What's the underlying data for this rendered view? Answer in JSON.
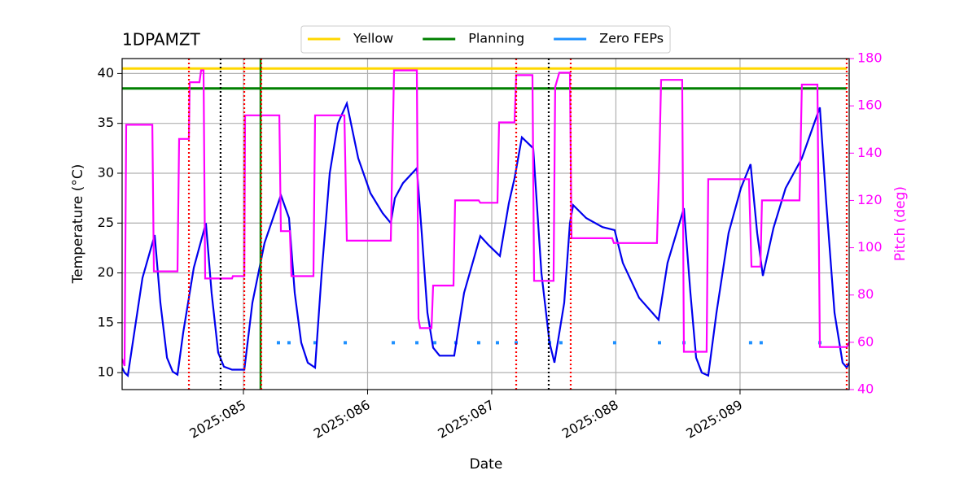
{
  "chart_data": {
    "type": "line",
    "title": "1DPAMZT",
    "xlabel": "Date",
    "ylabel": "Temperature (°C)",
    "y2label": "Pitch (deg)",
    "xlim": [
      84.023,
      89.879
    ],
    "xticks": [
      {
        "value": 85,
        "label": "2025:085"
      },
      {
        "value": 86,
        "label": "2025:086"
      },
      {
        "value": 87,
        "label": "2025:087"
      },
      {
        "value": 88,
        "label": "2025:088"
      },
      {
        "value": 89,
        "label": "2025:089"
      }
    ],
    "ylim": [
      8.3,
      41.5
    ],
    "yticks": [
      10,
      15,
      20,
      25,
      30,
      35,
      40
    ],
    "y2lim": [
      40,
      180
    ],
    "y2ticks": [
      40,
      60,
      80,
      100,
      120,
      140,
      160,
      180
    ],
    "y2color": "#ff00ff",
    "grid": true,
    "legend": "upper center",
    "limits": [
      {
        "name": "Yellow",
        "color": "#ffd700",
        "value": 40.5
      },
      {
        "name": "Planning",
        "color": "#008000",
        "value": 38.5
      }
    ],
    "vlines": [
      {
        "color": "#008000",
        "style": "solid",
        "x": [
          85.138
        ]
      },
      {
        "color": "#ff0000",
        "style": "dotted",
        "x": [
          84.561,
          85.007,
          85.144,
          87.197,
          87.636,
          89.859
        ]
      },
      {
        "color": "#000000",
        "style": "dotted",
        "x": [
          84.816,
          87.459
        ]
      }
    ],
    "series": [
      {
        "color": "#0000ee",
        "style": "line",
        "x": [
          84.023,
          84.043,
          84.069,
          84.121,
          84.187,
          84.285,
          84.331,
          84.384,
          84.43,
          84.469,
          84.515,
          84.6,
          84.698,
          84.744,
          84.797,
          84.843,
          84.908,
          85.007,
          85.072,
          85.17,
          85.302,
          85.367,
          85.413,
          85.466,
          85.518,
          85.577,
          85.63,
          85.695,
          85.761,
          85.833,
          85.925,
          86.023,
          86.121,
          86.187,
          86.22,
          86.285,
          86.397,
          86.436,
          86.482,
          86.528,
          86.58,
          86.698,
          86.777,
          86.908,
          86.974,
          87.066,
          87.138,
          87.184,
          87.243,
          87.334,
          87.4,
          87.466,
          87.505,
          87.551,
          87.584,
          87.63,
          87.656,
          87.761,
          87.892,
          87.99,
          88.056,
          88.187,
          88.344,
          88.416,
          88.548,
          88.6,
          88.646,
          88.692,
          88.744,
          88.81,
          88.908,
          89.007,
          89.085,
          89.138,
          89.184,
          89.269,
          89.367,
          89.498,
          89.597,
          89.643,
          89.695,
          89.761,
          89.826,
          89.859,
          89.879
        ],
        "values": [
          10.5,
          10,
          9.7,
          14,
          19.5,
          23.8,
          17,
          11.5,
          10.1,
          9.8,
          14,
          20.5,
          25,
          18,
          12,
          10.6,
          10.3,
          10.3,
          17,
          23,
          27.8,
          25.5,
          18,
          13,
          11,
          10.5,
          20,
          30,
          35,
          37,
          31.5,
          28,
          26,
          25,
          27.5,
          29,
          30.5,
          24,
          16,
          12.5,
          11.7,
          11.7,
          18,
          23.7,
          22.8,
          21.7,
          27,
          29.5,
          33.6,
          32.5,
          20,
          13,
          11,
          14.5,
          17,
          25,
          26.8,
          25.5,
          24.6,
          24.3,
          21,
          17.5,
          15.3,
          21,
          26.5,
          18,
          11.5,
          10,
          9.7,
          16,
          24,
          28.5,
          30.9,
          24,
          19.7,
          24.5,
          28.5,
          31.5,
          35,
          36.6,
          27,
          16,
          11,
          10.5,
          11
        ]
      },
      {
        "color": "#ff00ff",
        "style": "line",
        "axis": "y2",
        "x": [
          84.023,
          84.043,
          84.056,
          84.266,
          84.279,
          84.469,
          84.482,
          84.561,
          84.567,
          84.646,
          84.659,
          84.679,
          84.692,
          84.908,
          84.915,
          85.007,
          85.013,
          85.289,
          85.302,
          85.374,
          85.387,
          85.564,
          85.577,
          85.813,
          85.833,
          86.187,
          86.2,
          86.213,
          86.397,
          86.41,
          86.423,
          86.515,
          86.528,
          86.692,
          86.705,
          86.895,
          86.908,
          87.046,
          87.059,
          87.184,
          87.197,
          87.328,
          87.341,
          87.498,
          87.511,
          87.544,
          87.63,
          87.643,
          87.97,
          87.984,
          88.331,
          88.351,
          88.364,
          88.534,
          88.548,
          88.731,
          88.744,
          89.072,
          89.092,
          89.164,
          89.177,
          89.479,
          89.498,
          89.623,
          89.643,
          89.859,
          89.879
        ],
        "values": [
          53,
          50,
          152,
          152,
          90,
          90,
          146,
          146,
          170,
          170,
          175,
          175,
          87,
          87,
          88,
          88,
          156,
          156,
          107,
          107,
          88,
          88,
          156,
          156,
          103,
          103,
          140,
          175,
          175,
          70,
          66,
          66,
          84,
          84,
          120,
          120,
          119,
          119,
          153,
          153,
          173,
          173,
          86,
          86,
          168,
          174,
          174,
          104,
          104,
          102,
          102,
          140,
          171,
          171,
          56,
          56,
          129,
          129,
          92,
          92,
          120,
          120,
          169,
          169,
          58,
          58,
          60
        ]
      },
      {
        "name": "Zero FEPs",
        "color": "#1e90ff",
        "style": "dots",
        "x": [
          85.282,
          85.367,
          85.577,
          85.82,
          86.207,
          86.397,
          86.541,
          86.711,
          86.895,
          87.046,
          87.197,
          87.466,
          87.557,
          87.99,
          88.351,
          88.548,
          89.085,
          89.17,
          89.643
        ],
        "values": [
          13,
          13,
          13,
          13,
          13,
          13,
          13,
          13,
          13,
          13,
          13,
          13,
          13,
          13,
          13,
          13,
          13,
          13,
          13
        ]
      }
    ]
  }
}
